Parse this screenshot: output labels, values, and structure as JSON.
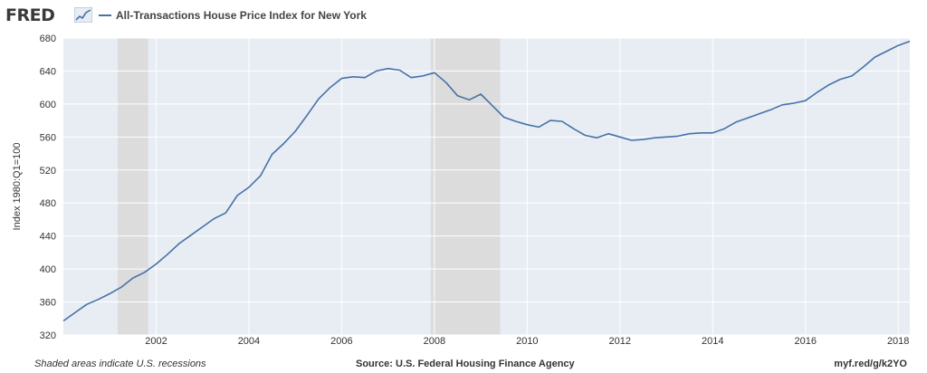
{
  "header": {
    "logo_text": "FRED",
    "logo_icon": "trend-line-icon",
    "series_label": "All-Transactions House Price Index for New York",
    "series_color": "#4572a7"
  },
  "footer": {
    "left": "Shaded areas indicate U.S. recessions",
    "center": "Source: U.S. Federal Housing Finance Agency",
    "right": "myf.red/g/k2YO"
  },
  "colors": {
    "plot_background": "#e8edf4",
    "gridline": "#ffffff",
    "recession": "#dcdcdc",
    "line": "#4572a7"
  },
  "chart_data": {
    "type": "line",
    "title": "All-Transactions House Price Index for New York",
    "xlabel": "",
    "ylabel": "Index 1980:Q1=100",
    "xlim": [
      2000.0,
      2018.25
    ],
    "ylim": [
      320,
      680
    ],
    "y_ticks": [
      320,
      360,
      400,
      440,
      480,
      520,
      560,
      600,
      640,
      680
    ],
    "x_ticks": [
      2002,
      2004,
      2006,
      2008,
      2010,
      2012,
      2014,
      2016,
      2018
    ],
    "grid": true,
    "legend": "top-left",
    "recessions": [
      [
        2001.17,
        2001.83
      ],
      [
        2007.92,
        2009.42
      ]
    ],
    "series": [
      {
        "name": "All-Transactions House Price Index for New York",
        "color": "#4572a7",
        "x": [
          2000.0,
          2000.25,
          2000.5,
          2000.75,
          2001.0,
          2001.25,
          2001.5,
          2001.75,
          2002.0,
          2002.25,
          2002.5,
          2002.75,
          2003.0,
          2003.25,
          2003.5,
          2003.75,
          2004.0,
          2004.25,
          2004.5,
          2004.75,
          2005.0,
          2005.25,
          2005.5,
          2005.75,
          2006.0,
          2006.25,
          2006.5,
          2006.75,
          2007.0,
          2007.25,
          2007.5,
          2007.75,
          2008.0,
          2008.25,
          2008.5,
          2008.75,
          2009.0,
          2009.25,
          2009.5,
          2009.75,
          2010.0,
          2010.25,
          2010.5,
          2010.75,
          2011.0,
          2011.25,
          2011.5,
          2011.75,
          2012.0,
          2012.25,
          2012.5,
          2012.75,
          2013.0,
          2013.25,
          2013.5,
          2013.75,
          2014.0,
          2014.25,
          2014.5,
          2014.75,
          2015.0,
          2015.25,
          2015.5,
          2015.75,
          2016.0,
          2016.25,
          2016.5,
          2016.75,
          2017.0,
          2017.25,
          2017.5,
          2017.75,
          2018.0,
          2018.25
        ],
        "values": [
          337,
          347,
          357,
          363,
          370,
          378,
          389,
          396,
          406,
          418,
          431,
          441,
          451,
          461,
          468,
          489,
          499,
          513,
          539,
          552,
          567,
          586,
          606,
          620,
          631,
          633,
          632,
          640,
          643,
          641,
          632,
          634,
          638,
          626,
          610,
          605,
          612,
          598,
          584,
          579,
          575,
          572,
          580,
          579,
          570,
          562,
          559,
          564,
          560,
          556,
          557,
          559,
          560,
          561,
          564,
          565,
          565,
          570,
          578,
          583,
          588,
          593,
          599,
          601,
          604,
          614,
          623,
          630,
          634,
          645,
          657,
          664,
          671,
          676
        ]
      }
    ]
  }
}
